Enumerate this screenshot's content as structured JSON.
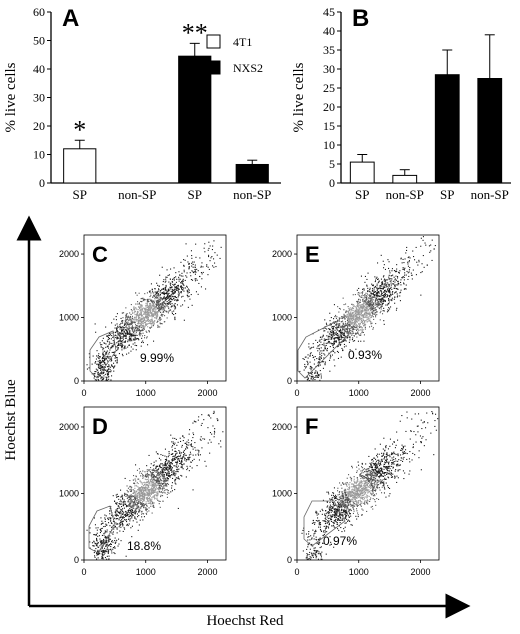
{
  "figure": {
    "y_axis_label": "Hoechst Blue",
    "x_axis_label": "Hoechst Red"
  },
  "chart_data": [
    {
      "type": "bar",
      "panel": "A",
      "categories": [
        "SP",
        "non-SP",
        "SP",
        "non-SP"
      ],
      "series": [
        {
          "name": "4T1",
          "values": [
            12,
            0,
            null,
            null
          ],
          "errors": [
            3,
            0,
            null,
            null
          ]
        },
        {
          "name": "NXS2",
          "values": [
            null,
            null,
            44.5,
            6.5
          ],
          "errors": [
            null,
            null,
            4.5,
            1.5
          ]
        }
      ],
      "bar_colors": [
        "#ffffff",
        "#ffffff",
        "#000000",
        "#000000"
      ],
      "annotations": [
        "*",
        "",
        "**",
        ""
      ],
      "ylabel": "% live cells",
      "xlabel": "",
      "ylim": [
        0,
        60
      ],
      "yticks": [
        0,
        10,
        20,
        30,
        40,
        50,
        60
      ],
      "legend": "top-right",
      "grid": false
    },
    {
      "type": "bar",
      "panel": "B",
      "categories": [
        "SP",
        "non-SP",
        "SP",
        "non-SP"
      ],
      "values": [
        5.5,
        2,
        28.5,
        27.5
      ],
      "errors": [
        2,
        1.5,
        6.5,
        11.5
      ],
      "bar_colors": [
        "#ffffff",
        "#ffffff",
        "#000000",
        "#000000"
      ],
      "ylabel": "% live cells",
      "xlabel": "",
      "ylim": [
        0,
        45
      ],
      "yticks": [
        0,
        5,
        10,
        15,
        20,
        25,
        30,
        35,
        40,
        45
      ],
      "grid": false
    },
    {
      "type": "scatter",
      "panel": "C",
      "gate_percent": "9.99%",
      "xlim": [
        0,
        2300
      ],
      "ylim": [
        0,
        2300
      ],
      "xticks": [
        0,
        1000,
        2000
      ],
      "yticks": [
        0,
        1000,
        2000
      ],
      "xticklabels": [
        "0",
        "1000",
        "2000"
      ],
      "yticklabels": [
        "0",
        "1000",
        "2000"
      ],
      "xlabel": "Hoechst Red",
      "ylabel": "Hoechst Blue"
    },
    {
      "type": "scatter",
      "panel": "E",
      "gate_percent": "0.93%",
      "xlim": [
        0,
        2300
      ],
      "ylim": [
        0,
        2300
      ],
      "xticks": [
        0,
        1000,
        2000
      ],
      "yticks": [
        0,
        1000,
        2000
      ],
      "xticklabels": [
        "0",
        "1000",
        "2000"
      ],
      "yticklabels": [
        "0",
        "1000",
        "2000"
      ],
      "xlabel": "Hoechst Red",
      "ylabel": "Hoechst Blue"
    },
    {
      "type": "scatter",
      "panel": "D",
      "gate_percent": "18.8%",
      "xlim": [
        0,
        2300
      ],
      "ylim": [
        0,
        2300
      ],
      "xticks": [
        0,
        1000,
        2000
      ],
      "yticks": [
        0,
        1000,
        2000
      ],
      "xticklabels": [
        "0",
        "1000",
        "2000"
      ],
      "yticklabels": [
        "0",
        "1000",
        "2000"
      ],
      "xlabel": "Hoechst Red",
      "ylabel": "Hoechst Blue"
    },
    {
      "type": "scatter",
      "panel": "F",
      "gate_percent": "0.97%",
      "xlim": [
        0,
        2300
      ],
      "ylim": [
        0,
        2300
      ],
      "xticks": [
        0,
        1000,
        2000
      ],
      "yticks": [
        0,
        1000,
        2000
      ],
      "xticklabels": [
        "0",
        "1000",
        "2000"
      ],
      "yticklabels": [
        "0",
        "1000",
        "2000"
      ],
      "xlabel": "Hoechst Red",
      "ylabel": "Hoechst Blue"
    }
  ]
}
